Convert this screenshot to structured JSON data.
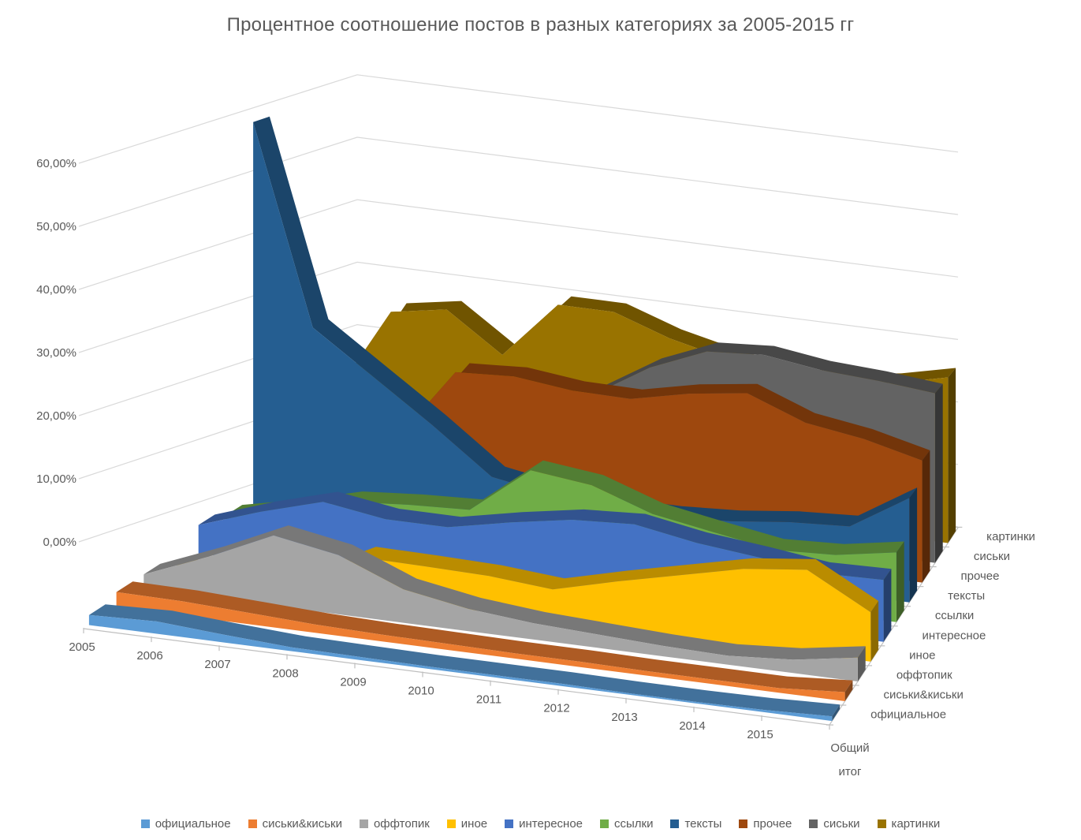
{
  "chart_data": {
    "type": "area",
    "projection": "3d-perspective",
    "title": "Процентное соотношение постов в разных категориях за 2005-2015 гг",
    "categories": [
      "2005",
      "2006",
      "2007",
      "2008",
      "2009",
      "2010",
      "2011",
      "2012",
      "2013",
      "2014",
      "2015",
      "Общий итог"
    ],
    "last_category_two_lines": [
      "Общий",
      "итог"
    ],
    "series": [
      {
        "name": "официальное",
        "color": "#5B9BD5",
        "values": [
          1.3,
          1.6,
          1.0,
          0.5,
          0.4,
          0.3,
          0.3,
          0.3,
          0.2,
          0.2,
          0.3,
          0.6
        ]
      },
      {
        "name": "сиськи&киськи",
        "color": "#ED7D31",
        "values": [
          2.0,
          1.9,
          1.5,
          1.1,
          0.9,
          0.8,
          0.7,
          0.7,
          0.6,
          0.6,
          0.6,
          1.2
        ]
      },
      {
        "name": "оффтопик",
        "color": "#A5A5A5",
        "values": [
          2.0,
          5.5,
          9.5,
          8.0,
          4.5,
          3.0,
          2.2,
          1.8,
          1.4,
          1.2,
          1.8,
          3.2
        ]
      },
      {
        "name": "иное",
        "color": "#FFC000",
        "values": [
          0.3,
          0.4,
          0.9,
          5.3,
          5.2,
          5.0,
          4.3,
          6.5,
          8.5,
          10.5,
          11.5,
          6.8
        ]
      },
      {
        "name": "интересное",
        "color": "#4472C4",
        "values": [
          4.0,
          7.0,
          9.5,
          8.2,
          8.2,
          10.0,
          11.5,
          12.0,
          10.5,
          9.6,
          8.5,
          8.7
        ]
      },
      {
        "name": "ссылки",
        "color": "#70AD47",
        "values": [
          2.9,
          4.8,
          7.1,
          7.8,
          8.2,
          15.0,
          14.0,
          11.0,
          9.5,
          8.1,
          8.5,
          10.0
        ]
      },
      {
        "name": "тексты",
        "color": "#255E91",
        "values": [
          58.0,
          29.0,
          23.0,
          17.0,
          10.5,
          9.0,
          8.0,
          8.0,
          8.5,
          9.5,
          10.0,
          15.3
        ]
      },
      {
        "name": "прочее",
        "color": "#9E480E",
        "values": [
          1.2,
          4.3,
          11.5,
          22.5,
          23.0,
          22.0,
          21.9,
          23.8,
          25.0,
          21.7,
          20.4,
          18.3
        ]
      },
      {
        "name": "сиськи",
        "color": "#636363",
        "values": [
          0.8,
          1.0,
          1.5,
          2.5,
          7.0,
          19.0,
          24.3,
          27.9,
          28.5,
          27.3,
          26.8,
          26.0
        ]
      },
      {
        "name": "картинки",
        "color": "#997300",
        "values": [
          11.0,
          25.0,
          26.5,
          20.5,
          29.5,
          29.5,
          26.5,
          24.5,
          23.0,
          22.8,
          24.0,
          26.0
        ]
      }
    ],
    "value_axis": {
      "tick_labels": [
        "0,00%",
        "10,00%",
        "20,00%",
        "30,00%",
        "40,00%",
        "50,00%",
        "60,00%"
      ],
      "min": 0,
      "max": 60,
      "step": 10,
      "unit": "%"
    },
    "depth_axis_labels_front_to_back": [
      "официальное",
      "сиськи&киськи",
      "оффтопик",
      "иное",
      "интересное",
      "ссылки",
      "тексты",
      "прочее",
      "сиськи",
      "картинки"
    ],
    "legend": {
      "position": "bottom",
      "items": [
        "официальное",
        "сиськи&киськи",
        "оффтопик",
        "иное",
        "интересное",
        "ссылки",
        "тексты",
        "прочее",
        "сиськи",
        "картинки"
      ]
    },
    "grid": true
  },
  "theme": {
    "text_color": "#595959",
    "grid_color": "#D9D9D9",
    "axis_color": "#BFBFBF",
    "background": "#FFFFFF"
  }
}
